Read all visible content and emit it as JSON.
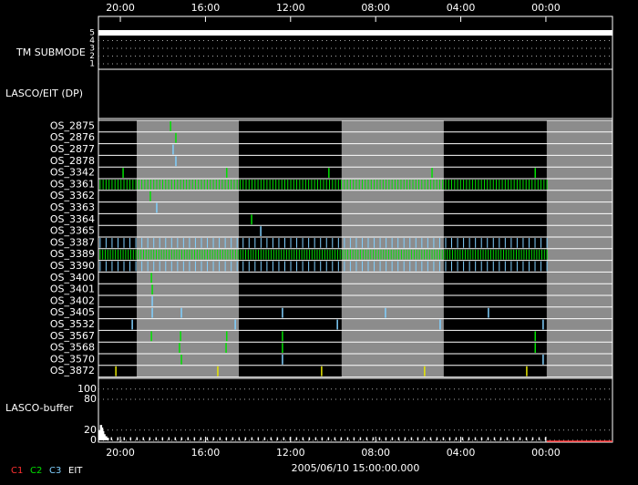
{
  "top_axis": {
    "xlim": [
      -1.03,
      23.13
    ],
    "ticks": [
      {
        "value": 0,
        "label": "20:00"
      },
      {
        "value": 4,
        "label": "16:00"
      },
      {
        "value": 8,
        "label": "12:00"
      },
      {
        "value": 12,
        "label": "08:00"
      },
      {
        "value": 16,
        "label": "04:00"
      },
      {
        "value": 20,
        "label": "00:00"
      }
    ]
  },
  "colors": {
    "c1": "#ff3030",
    "c2": "#00e000",
    "c3": "#80d0ff",
    "eit": "#e8e800"
  },
  "tm_submode": {
    "label": "TM SUBMODE",
    "levels": [
      5,
      4,
      3,
      2,
      1
    ],
    "value": 5
  },
  "dp_panel": {
    "label": "LASCO/EIT (DP)"
  },
  "night_bands": [
    [
      0.77,
      5.57
    ],
    [
      10.4,
      15.2
    ],
    [
      20.04,
      23.13
    ]
  ],
  "rows": [
    {
      "label": "OS_2875",
      "c2": [
        2.36
      ]
    },
    {
      "label": "OS_2876",
      "c2": [
        2.61
      ]
    },
    {
      "label": "OS_2877",
      "c3": [
        2.48
      ]
    },
    {
      "label": "OS_2878",
      "c3": [
        2.61
      ]
    },
    {
      "label": "OS_3342",
      "c2": [
        0.13,
        5.0,
        9.8,
        14.65,
        19.5
      ]
    },
    {
      "label": "OS_3361",
      "dense": {
        "channel": "c2",
        "from": -0.95,
        "to": 20.05,
        "every": 0.14
      }
    },
    {
      "label": "OS_3362",
      "c2": [
        1.41
      ]
    },
    {
      "label": "OS_3363",
      "c3": [
        1.71
      ]
    },
    {
      "label": "OS_3364",
      "c2": [
        6.17
      ]
    },
    {
      "label": "OS_3365",
      "c3": [
        6.6
      ]
    },
    {
      "label": "OS_3387",
      "dense": {
        "channel": "c3",
        "from": -0.95,
        "to": 20.05,
        "every": 0.28
      }
    },
    {
      "label": "OS_3389",
      "dense": {
        "channel": "c2",
        "from": -0.95,
        "to": 20.05,
        "every": 0.12
      }
    },
    {
      "label": "OS_3390",
      "dense": {
        "channel": "c3",
        "from": -0.95,
        "to": 20.05,
        "every": 0.28
      }
    },
    {
      "label": "OS_3400",
      "c2": [
        1.46
      ]
    },
    {
      "label": "OS_3401",
      "c2": [
        1.5
      ]
    },
    {
      "label": "OS_3402",
      "c3": [
        1.5
      ]
    },
    {
      "label": "OS_3405",
      "c3": [
        1.5,
        2.87,
        7.62,
        12.46,
        17.3
      ]
    },
    {
      "label": "OS_3532",
      "c3": [
        0.56,
        5.4,
        10.2,
        15.03,
        19.87
      ]
    },
    {
      "label": "OS_3567",
      "c2": [
        1.46,
        2.83,
        5.0,
        7.62,
        19.5
      ]
    },
    {
      "label": "OS_3568",
      "c2": [
        2.78,
        4.97,
        7.62,
        19.5
      ]
    },
    {
      "label": "OS_3570",
      "c2": [
        2.87
      ],
      "c3": [
        7.62,
        19.87
      ]
    },
    {
      "label": "OS_3872",
      "eit": [
        -0.21,
        4.58,
        9.46,
        14.3,
        19.1
      ]
    }
  ],
  "buffer": {
    "label": "LASCO-buffer",
    "ylim": [
      0,
      121
    ],
    "yticks": [
      0,
      20,
      80,
      100
    ],
    "peak": {
      "t": [
        -0.97,
        -0.92,
        -0.87,
        -0.82,
        -0.76,
        -0.68,
        -0.6
      ],
      "v": [
        20,
        30,
        25,
        18,
        12,
        8,
        5
      ]
    },
    "spikes": {
      "from": -0.45,
      "to": 20.0,
      "every": 0.3,
      "value": 6
    },
    "c1_segment": [
      20.04,
      23.13
    ]
  },
  "legend": [
    {
      "label": "C1",
      "color": "#ff3030"
    },
    {
      "label": "C2",
      "color": "#00e000"
    },
    {
      "label": "C3",
      "color": "#80d0ff"
    },
    {
      "label": "EIT",
      "color": "#ffffff"
    }
  ],
  "timestamp": "2005/06/10 15:00:00.000"
}
